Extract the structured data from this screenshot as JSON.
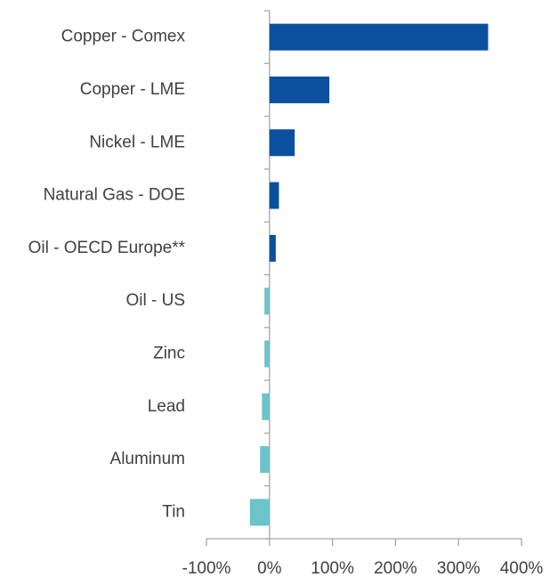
{
  "chart_data": {
    "type": "barh",
    "categories": [
      "Copper - Comex",
      "Copper - LME",
      "Nickel - LME",
      "Natural Gas - DOE",
      "Oil - OECD Europe**",
      "Oil - US",
      "Zinc",
      "Lead",
      "Aluminum",
      "Tin"
    ],
    "values": [
      347,
      95,
      40,
      15,
      10,
      -8,
      -8,
      -12,
      -15,
      -31
    ],
    "positive_color": "#0b4f9f",
    "negative_color": "#6cc3c9",
    "xlim": [
      -100,
      400
    ],
    "xticks": [
      {
        "value": -100,
        "label": "-100%"
      },
      {
        "value": 0,
        "label": "0%"
      },
      {
        "value": 100,
        "label": "100%"
      },
      {
        "value": 200,
        "label": "200%"
      },
      {
        "value": 300,
        "label": "300%"
      },
      {
        "value": 400,
        "label": "400%"
      }
    ]
  }
}
